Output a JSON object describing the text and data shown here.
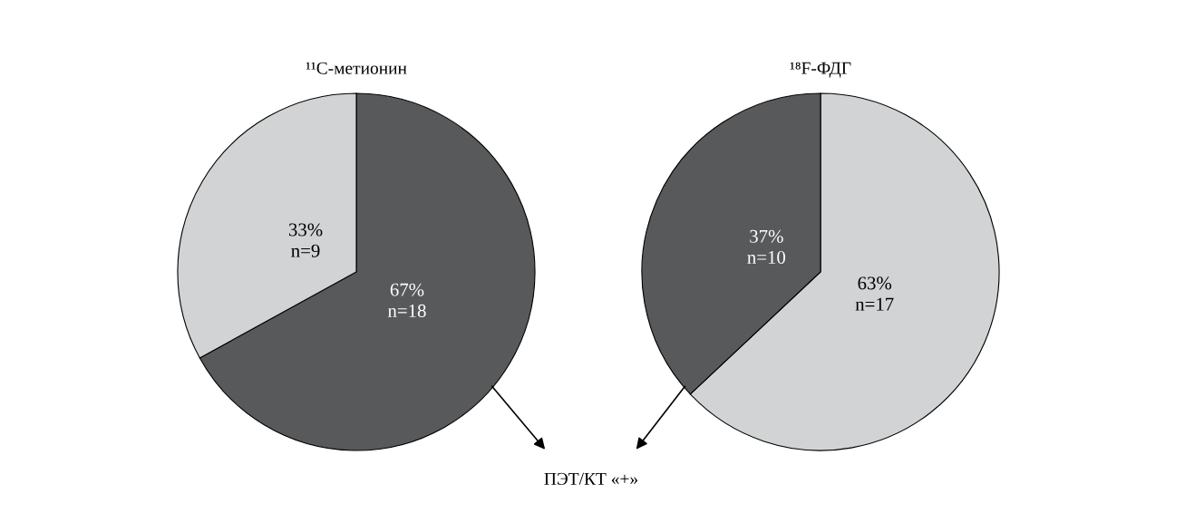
{
  "chart_data": [
    {
      "type": "pie",
      "title": "¹¹C-метионин",
      "categories": [
        null,
        null
      ],
      "values": [
        67,
        33
      ],
      "colors": [
        "#58595b",
        "#d1d3d4"
      ],
      "value_labels": [
        "67%\nn=18",
        "33%\nn=9"
      ],
      "annotations": [
        "ПЭТ/КТ «+»"
      ]
    },
    {
      "type": "pie",
      "title": "¹⁸F-ФДГ",
      "categories": [
        null,
        null
      ],
      "values": [
        63,
        37
      ],
      "colors": [
        "#d1d3d4",
        "#58595b"
      ],
      "value_labels": [
        "63%\nn=17",
        "37%\nn=10"
      ]
    }
  ]
}
